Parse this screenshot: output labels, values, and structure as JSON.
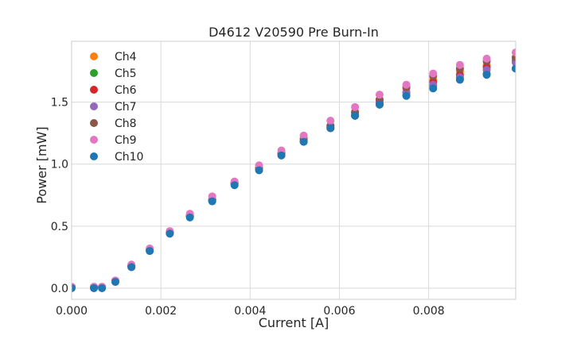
{
  "chart_data": {
    "type": "scatter",
    "title": "D4612 V20590 Pre Burn-In",
    "xlabel": "Current [A]",
    "ylabel": "Power [mW]",
    "xlim": [
      0.0,
      0.00995
    ],
    "ylim": [
      -0.09,
      1.99
    ],
    "xticks": [
      0.0,
      0.002,
      0.004,
      0.006,
      0.008
    ],
    "xtick_labels": [
      "0.000",
      "0.002",
      "0.004",
      "0.006",
      "0.008"
    ],
    "yticks": [
      0.0,
      0.5,
      1.0,
      1.5
    ],
    "ytick_labels": [
      "0.0",
      "0.5",
      "1.0",
      "1.5"
    ],
    "grid": true,
    "legend_position": "upper-left",
    "x": [
      0.0,
      0.0005,
      0.00068,
      0.00098,
      0.00134,
      0.00175,
      0.0022,
      0.00265,
      0.00315,
      0.00365,
      0.0042,
      0.0047,
      0.0052,
      0.0058,
      0.00635,
      0.0069,
      0.0075,
      0.0081,
      0.0087,
      0.0093,
      0.00995
    ],
    "series": [
      {
        "name": "Ch4",
        "color": "#ff7f0e",
        "values": [
          0.01,
          0.01,
          0.01,
          0.06,
          0.18,
          0.31,
          0.45,
          0.59,
          0.72,
          0.85,
          0.97,
          1.09,
          1.21,
          1.31,
          1.42,
          1.52,
          1.61,
          1.68,
          1.75,
          1.8,
          1.85
        ]
      },
      {
        "name": "Ch5",
        "color": "#2ca02c",
        "values": [
          0.01,
          0.01,
          0.01,
          0.06,
          0.18,
          0.31,
          0.45,
          0.58,
          0.71,
          0.84,
          0.96,
          1.07,
          1.18,
          1.29,
          1.39,
          1.48,
          1.56,
          1.63,
          1.69,
          1.73,
          1.77
        ]
      },
      {
        "name": "Ch6",
        "color": "#d62728",
        "values": [
          0.01,
          0.01,
          0.01,
          0.06,
          0.18,
          0.31,
          0.45,
          0.58,
          0.71,
          0.85,
          0.96,
          1.08,
          1.19,
          1.29,
          1.39,
          1.49,
          1.58,
          1.66,
          1.72,
          1.78,
          1.83
        ]
      },
      {
        "name": "Ch7",
        "color": "#9467bd",
        "values": [
          0.01,
          0.01,
          0.01,
          0.06,
          0.17,
          0.3,
          0.44,
          0.58,
          0.71,
          0.84,
          0.96,
          1.08,
          1.19,
          1.3,
          1.41,
          1.5,
          1.58,
          1.64,
          1.7,
          1.76,
          1.82
        ]
      },
      {
        "name": "Ch8",
        "color": "#8c564b",
        "values": [
          0.01,
          0.01,
          0.01,
          0.06,
          0.18,
          0.31,
          0.45,
          0.58,
          0.71,
          0.85,
          0.97,
          1.09,
          1.2,
          1.31,
          1.42,
          1.52,
          1.62,
          1.71,
          1.77,
          1.83,
          1.86
        ]
      },
      {
        "name": "Ch9",
        "color": "#e377c2",
        "values": [
          0.01,
          0.01,
          0.01,
          0.06,
          0.19,
          0.32,
          0.46,
          0.6,
          0.74,
          0.86,
          0.99,
          1.11,
          1.23,
          1.35,
          1.46,
          1.56,
          1.64,
          1.73,
          1.8,
          1.85,
          1.9
        ]
      },
      {
        "name": "Ch10",
        "color": "#1f77b4",
        "values": [
          0.0,
          0.0,
          0.0,
          0.05,
          0.17,
          0.3,
          0.44,
          0.57,
          0.7,
          0.83,
          0.95,
          1.07,
          1.18,
          1.29,
          1.39,
          1.48,
          1.55,
          1.61,
          1.68,
          1.72,
          1.77
        ]
      }
    ]
  }
}
